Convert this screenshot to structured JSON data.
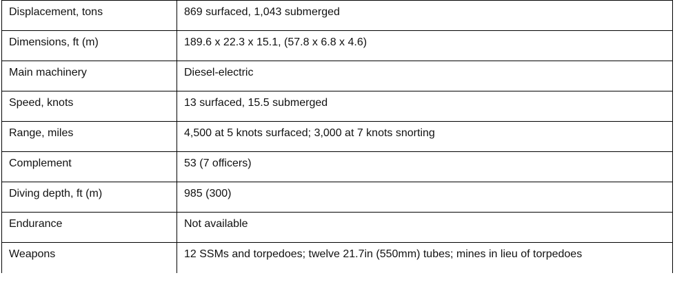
{
  "table": {
    "rows": [
      [
        "Displacement, tons",
        "869 surfaced, 1,043 submerged"
      ],
      [
        "Dimensions, ft (m)",
        "189.6 x 22.3 x 15.1, (57.8 x 6.8 x 4.6)"
      ],
      [
        "Main machinery",
        "Diesel-electric"
      ],
      [
        "Speed, knots",
        "13 surfaced, 15.5 submerged"
      ],
      [
        "Range, miles",
        "4,500 at 5 knots surfaced; 3,000 at 7 knots snorting"
      ],
      [
        "Complement",
        "53 (7 officers)"
      ],
      [
        "Diving depth, ft (m)",
        "985 (300)"
      ],
      [
        "Endurance",
        "Not available"
      ],
      [
        "Weapons",
        "12 SSMs and torpedoes; twelve 21.7in (550mm) tubes; mines in lieu of torpedoes"
      ]
    ]
  }
}
